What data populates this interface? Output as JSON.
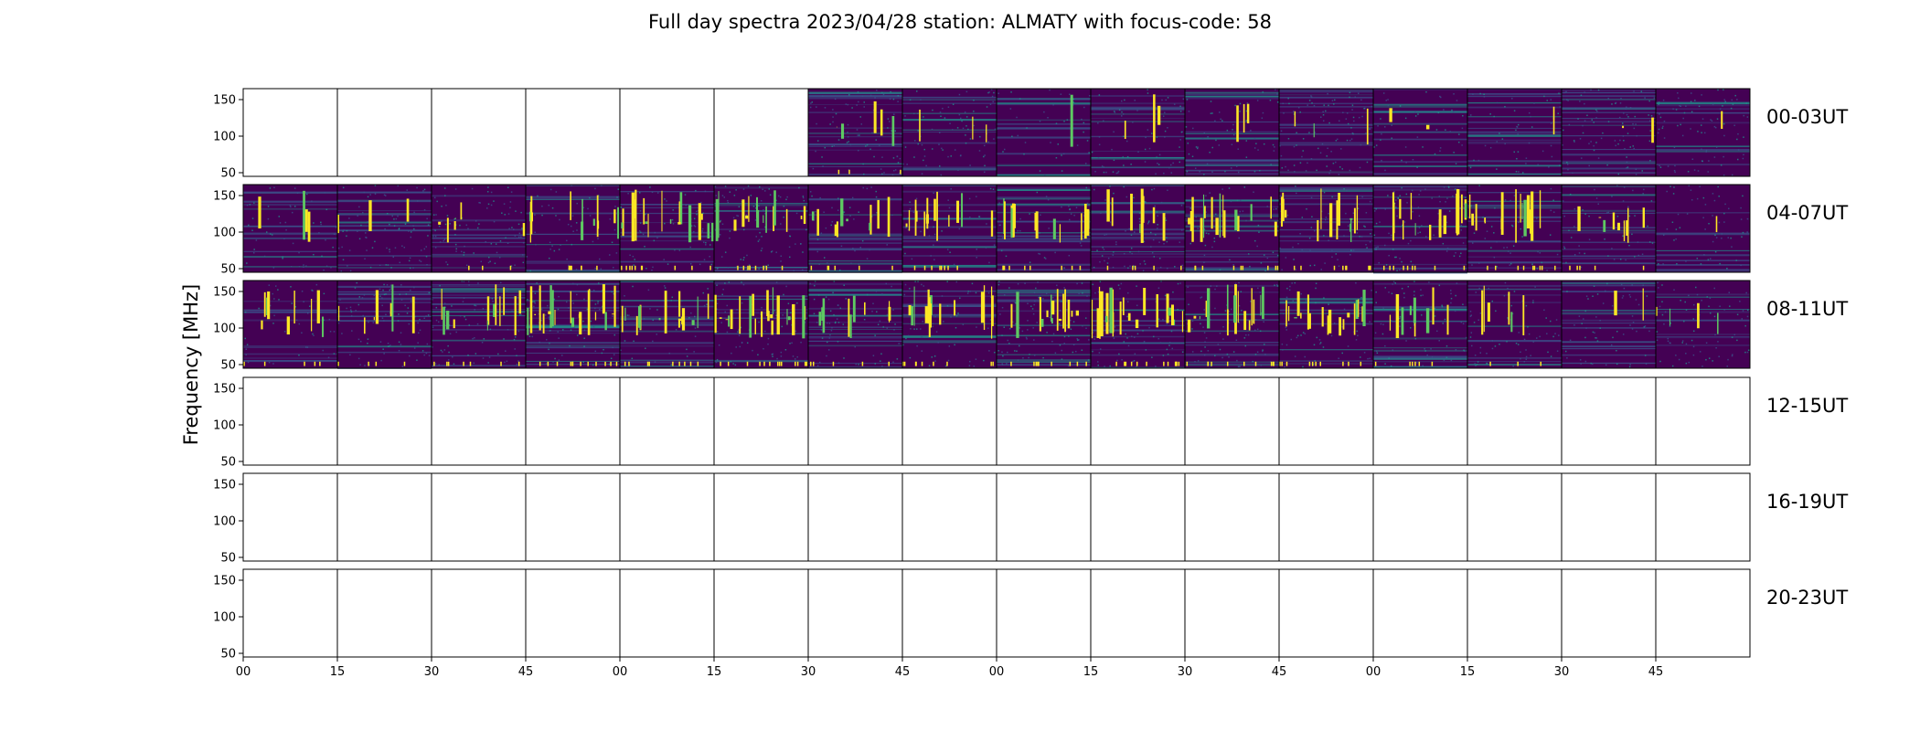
{
  "chart_data": {
    "type": "heatmap",
    "title": "Full day spectra 2023/04/28 station: ALMATY with focus-code: 58",
    "ylabel": "Frequency [MHz]",
    "xlabel": "",
    "colormap": "viridis",
    "colors": {
      "background": "#440154",
      "low": "#3b528b",
      "mid": "#21918c",
      "high": "#5ec962",
      "peak": "#fde725"
    },
    "ylim": [
      45,
      165
    ],
    "y_ticks": [
      "50",
      "100",
      "150"
    ],
    "x_tick_labels": [
      "00",
      "15",
      "30",
      "45",
      "00",
      "15",
      "30",
      "45",
      "00",
      "15",
      "30",
      "45",
      "00",
      "15",
      "30",
      "45"
    ],
    "panels_per_row": 16,
    "rows": [
      {
        "label": "00-03UT",
        "filled": [
          false,
          false,
          false,
          false,
          false,
          false,
          true,
          true,
          true,
          true,
          true,
          true,
          true,
          true,
          true,
          true
        ],
        "activity": [
          0,
          0,
          0,
          0,
          0,
          0,
          0.18,
          0.1,
          0.06,
          0.1,
          0.1,
          0.1,
          0.08,
          0.06,
          0.08,
          0.06
        ]
      },
      {
        "label": "04-07UT",
        "filled": [
          true,
          true,
          true,
          true,
          true,
          true,
          true,
          true,
          true,
          true,
          true,
          true,
          true,
          true,
          true,
          true
        ],
        "activity": [
          0.15,
          0.12,
          0.2,
          0.4,
          0.6,
          0.55,
          0.35,
          0.45,
          0.5,
          0.3,
          0.55,
          0.5,
          0.55,
          0.5,
          0.3,
          0.05
        ]
      },
      {
        "label": "08-11UT",
        "filled": [
          true,
          true,
          true,
          true,
          true,
          true,
          true,
          true,
          true,
          true,
          true,
          true,
          true,
          true,
          true,
          true
        ],
        "activity": [
          0.3,
          0.25,
          0.4,
          0.7,
          0.55,
          0.75,
          0.3,
          0.5,
          0.5,
          0.75,
          0.6,
          0.6,
          0.35,
          0.2,
          0.08,
          0.15
        ]
      },
      {
        "label": "12-15UT",
        "filled": [
          false,
          false,
          false,
          false,
          false,
          false,
          false,
          false,
          false,
          false,
          false,
          false,
          false,
          false,
          false,
          false
        ],
        "activity": []
      },
      {
        "label": "16-19UT",
        "filled": [
          false,
          false,
          false,
          false,
          false,
          false,
          false,
          false,
          false,
          false,
          false,
          false,
          false,
          false,
          false,
          false
        ],
        "activity": []
      },
      {
        "label": "20-23UT",
        "filled": [
          false,
          false,
          false,
          false,
          false,
          false,
          false,
          false,
          false,
          false,
          false,
          false,
          false,
          false,
          false,
          false
        ],
        "activity": []
      }
    ],
    "grid": false
  }
}
